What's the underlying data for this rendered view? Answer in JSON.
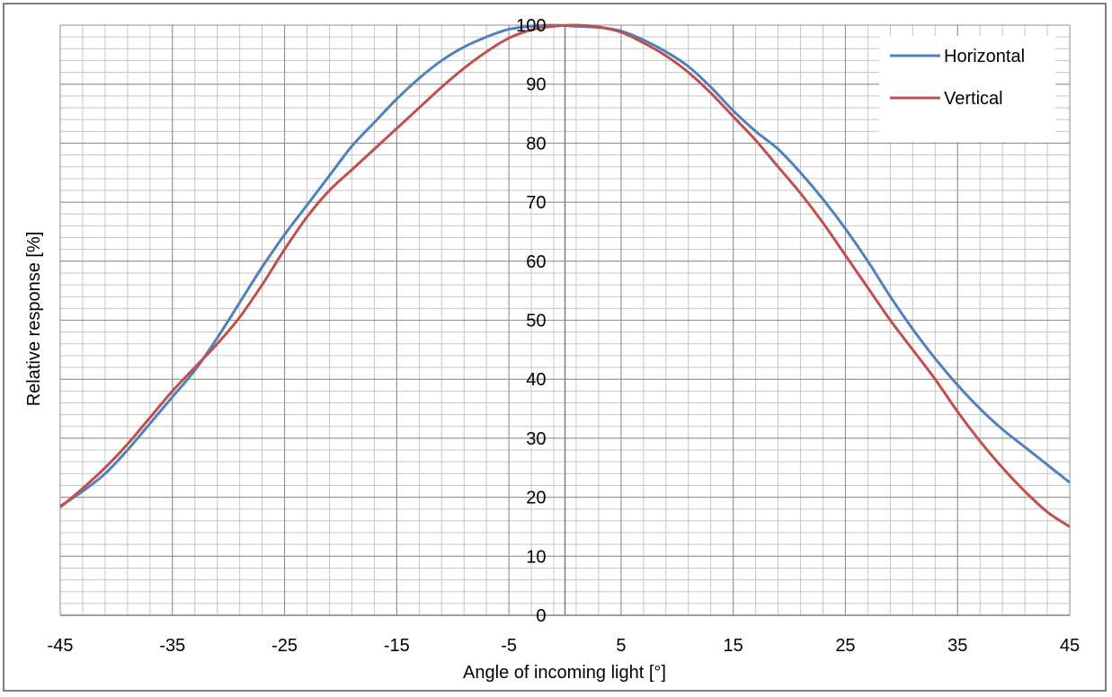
{
  "chart_data": {
    "type": "line",
    "title": "",
    "xlabel": "Angle of incoming light [°]",
    "ylabel": "Relative response [%]",
    "xlim": [
      -45,
      45
    ],
    "ylim": [
      0,
      100
    ],
    "x_ticks": [
      -45,
      -35,
      -25,
      -15,
      -5,
      5,
      15,
      25,
      35,
      45
    ],
    "y_ticks": [
      0,
      10,
      20,
      30,
      40,
      50,
      60,
      70,
      80,
      90,
      100
    ],
    "x_minor_step": 2,
    "y_minor_step": 2,
    "grid": true,
    "legend_position": "top-right",
    "series": [
      {
        "name": "Horizontal",
        "color": "#4f81bd",
        "points": [
          [
            -45,
            18.5
          ],
          [
            -43,
            21
          ],
          [
            -41,
            24
          ],
          [
            -39,
            28
          ],
          [
            -37,
            32.5
          ],
          [
            -35,
            37
          ],
          [
            -33,
            41.5
          ],
          [
            -31,
            47
          ],
          [
            -29,
            53
          ],
          [
            -27,
            59
          ],
          [
            -25,
            64.5
          ],
          [
            -23,
            69.5
          ],
          [
            -21,
            74.5
          ],
          [
            -19,
            79.5
          ],
          [
            -17,
            83.5
          ],
          [
            -15,
            87.5
          ],
          [
            -13,
            91
          ],
          [
            -11,
            94
          ],
          [
            -9,
            96.3
          ],
          [
            -7,
            98
          ],
          [
            -5,
            99.3
          ],
          [
            -3,
            99.8
          ],
          [
            -1,
            100
          ],
          [
            1,
            99.8
          ],
          [
            3,
            99.6
          ],
          [
            5,
            99
          ],
          [
            7,
            97.5
          ],
          [
            9,
            95.5
          ],
          [
            11,
            93
          ],
          [
            13,
            89.5
          ],
          [
            15,
            85.5
          ],
          [
            17,
            82
          ],
          [
            19,
            79
          ],
          [
            21,
            75
          ],
          [
            23,
            70.5
          ],
          [
            25,
            65.5
          ],
          [
            27,
            60
          ],
          [
            29,
            54
          ],
          [
            31,
            48.5
          ],
          [
            33,
            43.5
          ],
          [
            35,
            39
          ],
          [
            37,
            35
          ],
          [
            39,
            31.5
          ],
          [
            41,
            28.5
          ],
          [
            43,
            25.5
          ],
          [
            45,
            22.5
          ]
        ]
      },
      {
        "name": "Vertical",
        "color": "#c0504d",
        "points": [
          [
            -45,
            18.3
          ],
          [
            -43,
            21.5
          ],
          [
            -41,
            25
          ],
          [
            -39,
            29
          ],
          [
            -37,
            33.5
          ],
          [
            -35,
            38
          ],
          [
            -33,
            42
          ],
          [
            -31,
            46
          ],
          [
            -29,
            50.5
          ],
          [
            -27,
            56
          ],
          [
            -25,
            62
          ],
          [
            -23,
            67.5
          ],
          [
            -21,
            72
          ],
          [
            -19,
            75.5
          ],
          [
            -17,
            79
          ],
          [
            -15,
            82.5
          ],
          [
            -13,
            86
          ],
          [
            -11,
            89.5
          ],
          [
            -9,
            92.7
          ],
          [
            -7,
            95.5
          ],
          [
            -5,
            97.8
          ],
          [
            -3,
            99.2
          ],
          [
            -1,
            99.8
          ],
          [
            1,
            100
          ],
          [
            3,
            99.7
          ],
          [
            5,
            98.8
          ],
          [
            7,
            97
          ],
          [
            9,
            94.8
          ],
          [
            11,
            92
          ],
          [
            13,
            88.5
          ],
          [
            15,
            84.5
          ],
          [
            17,
            80.5
          ],
          [
            19,
            76
          ],
          [
            21,
            71.5
          ],
          [
            23,
            66.5
          ],
          [
            25,
            61
          ],
          [
            27,
            55.5
          ],
          [
            29,
            50
          ],
          [
            31,
            45
          ],
          [
            33,
            40
          ],
          [
            35,
            34.5
          ],
          [
            37,
            29.5
          ],
          [
            39,
            25
          ],
          [
            41,
            21
          ],
          [
            43,
            17.5
          ],
          [
            45,
            15
          ]
        ]
      }
    ]
  }
}
